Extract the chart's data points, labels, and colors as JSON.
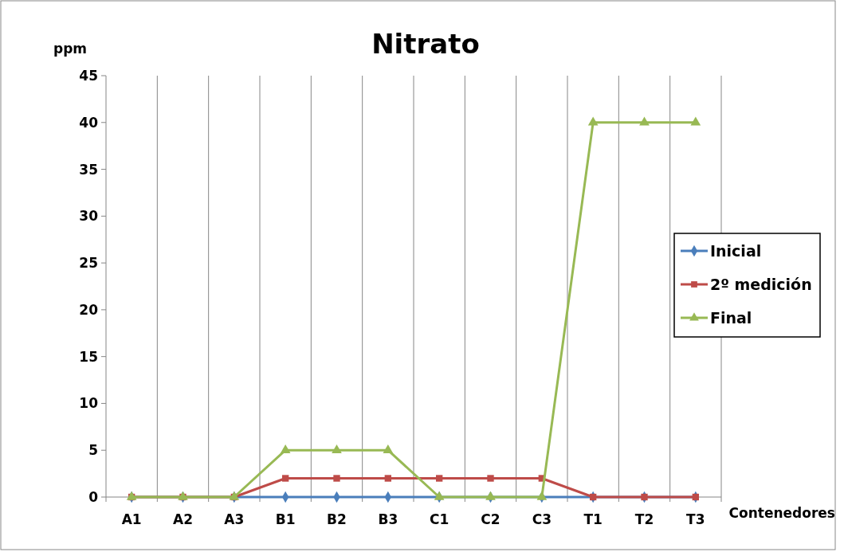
{
  "chart_data": {
    "type": "line",
    "title": "Nitrato",
    "xlabel": "Contenedores",
    "ylabel": "ppm",
    "categories": [
      "A1",
      "A2",
      "A3",
      "B1",
      "B2",
      "B3",
      "C1",
      "C2",
      "C3",
      "T1",
      "T2",
      "T3"
    ],
    "series": [
      {
        "name": "Inicial",
        "color": "#4a7ebb",
        "marker": "diamond",
        "values": [
          0,
          0,
          0,
          0,
          0,
          0,
          0,
          0,
          0,
          0,
          0,
          0
        ]
      },
      {
        "name": "2º medición",
        "color": "#be4b48",
        "marker": "square",
        "values": [
          0,
          0,
          0,
          2,
          2,
          2,
          2,
          2,
          2,
          0,
          0,
          0
        ]
      },
      {
        "name": "Final",
        "color": "#98b954",
        "marker": "triangle",
        "values": [
          0,
          0,
          0,
          5,
          5,
          5,
          0,
          0,
          0,
          40,
          40,
          40
        ]
      }
    ],
    "ylim": [
      0,
      45
    ],
    "yticks": [
      0,
      5,
      10,
      15,
      20,
      25,
      30,
      35,
      40,
      45
    ],
    "grid": "x",
    "legend": "right"
  }
}
